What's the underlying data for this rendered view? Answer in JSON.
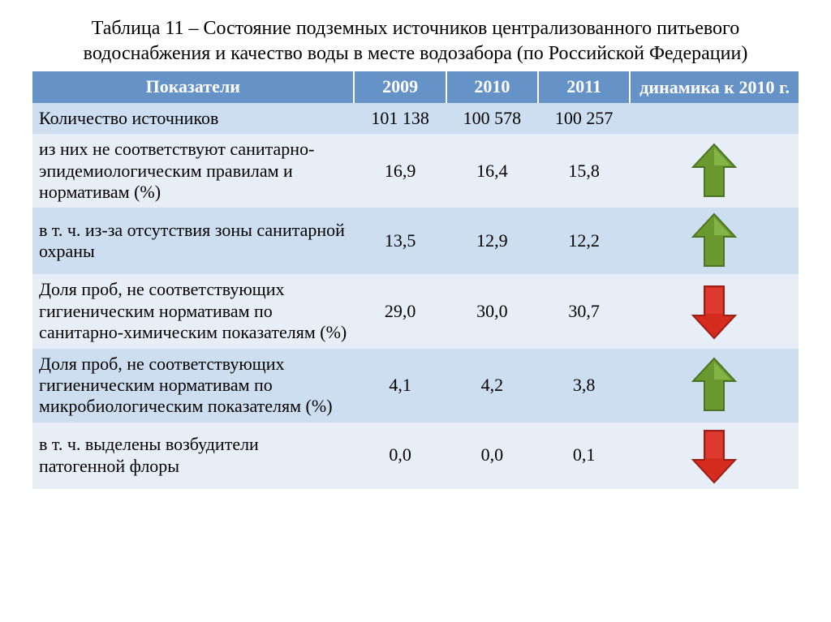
{
  "title": "Таблица 11 – Состояние подземных источников централизованного питьевого водоснабжения и качество воды в месте водозабора (по Российской Федерации)",
  "header": {
    "indicator": "Показатели",
    "y2009": "2009",
    "y2010": "2010",
    "y2011": "2011",
    "trend": "динамика к 2010 г."
  },
  "rows": [
    {
      "label": "Количество источников",
      "y2009": "101 138",
      "y2010": "100 578",
      "y2011": "100 257",
      "trend": "none"
    },
    {
      "label": "из них не соответствуют санитарно-эпидемиологическим правилам и нормативам (%)",
      "y2009": "16,9",
      "y2010": "16,4",
      "y2011": "15,8",
      "trend": "up"
    },
    {
      "label": "в т. ч. из-за отсутствия зоны санитарной охраны",
      "y2009": "13,5",
      "y2010": "12,9",
      "y2011": "12,2",
      "trend": "up"
    },
    {
      "label": "Доля проб, не соответствующих гигиеническим нормативам по санитарно-химическим показателям (%)",
      "y2009": "29,0",
      "y2010": "30,0",
      "y2011": "30,7",
      "trend": "down"
    },
    {
      "label": "Доля проб, не соответствующих гигиеническим нормативам по микробиологическим показателям (%)",
      "y2009": "4,1",
      "y2010": "4,2",
      "y2011": "3,8",
      "trend": "up"
    },
    {
      "label": "в т. ч. выделены возбудители патогенной флоры",
      "y2009": "0,0",
      "y2010": "0,0",
      "y2011": "0,1",
      "trend": "down"
    }
  ],
  "colors": {
    "header_bg": "#6693c7",
    "header_text": "#ffffff",
    "row_even": "#cddef1",
    "row_odd": "#e8eef7",
    "arrow_up_fill": "#6a9a2f",
    "arrow_up_stroke": "#4e7322",
    "arrow_up_light": "#8fbf4f",
    "arrow_down_fill": "#d62b1f",
    "arrow_down_stroke": "#9a1f16",
    "arrow_down_light": "#ef5a50"
  },
  "arrow_size": {
    "w": 60,
    "h": 70
  }
}
